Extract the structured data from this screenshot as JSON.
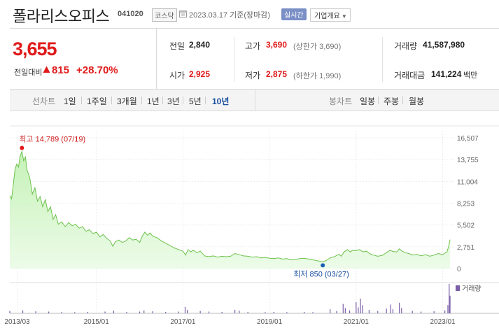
{
  "header": {
    "name": "폴라리스오피스",
    "code": "041020",
    "market": "코스닥",
    "date": "2023.03.17 기준(장마감)",
    "realtime_label": "실시간",
    "company_label": "기업개요"
  },
  "price": {
    "current": "3,655",
    "change_label": "전일대비",
    "change": "815",
    "change_pct": "+28.70%",
    "up_color": "#e01a1a"
  },
  "stats": {
    "prev_label": "전일",
    "prev": "2,840",
    "open_label": "시가",
    "open": "2,925",
    "high_label": "고가",
    "high": "3,690",
    "high_limit": "(상한가 3,690)",
    "low_label": "저가",
    "low": "2,875",
    "low_limit": "(하한가 1,990)",
    "volume_label": "거래량",
    "volume": "41,587,980",
    "amount_label": "거래대금",
    "amount": "141,224",
    "amount_unit": "백만"
  },
  "toolbar": {
    "line_label": "선차트",
    "periods": [
      "1일",
      "1주일",
      "3개월",
      "1년",
      "3년",
      "5년",
      "10년"
    ],
    "active_period": "10년",
    "candle_label": "봉차트",
    "candles": [
      "일봉",
      "주봉",
      "월봉"
    ]
  },
  "chart_data": {
    "type": "area",
    "title": "",
    "x_ticks": [
      "2013/03",
      "2015/01",
      "2017/01",
      "2019/01",
      "2021/01",
      "2023/01"
    ],
    "x_tick_times": [
      2013.17,
      2015.0,
      2017.0,
      2019.0,
      2021.0,
      2023.0
    ],
    "y_ticks": [
      "16,507",
      "13,755",
      "11,004",
      "8,253",
      "5,502",
      "2,751",
      "0"
    ],
    "ylim": [
      0,
      16507
    ],
    "xlim": [
      2013.0,
      2023.25
    ],
    "series": [
      {
        "points": [
          [
            2013.0,
            9200
          ],
          [
            2013.04,
            8800
          ],
          [
            2013.08,
            10500
          ],
          [
            2013.12,
            12500
          ],
          [
            2013.16,
            13200
          ],
          [
            2013.2,
            12800
          ],
          [
            2013.24,
            14200
          ],
          [
            2013.28,
            14789
          ],
          [
            2013.32,
            13600
          ],
          [
            2013.36,
            14100
          ],
          [
            2013.4,
            12400
          ],
          [
            2013.46,
            11500
          ],
          [
            2013.52,
            9400
          ],
          [
            2013.58,
            10200
          ],
          [
            2013.64,
            8500
          ],
          [
            2013.7,
            9100
          ],
          [
            2013.76,
            7800
          ],
          [
            2013.82,
            8700
          ],
          [
            2013.88,
            7200
          ],
          [
            2013.94,
            7800
          ],
          [
            2014.0,
            6200
          ],
          [
            2014.06,
            6800
          ],
          [
            2014.12,
            5600
          ],
          [
            2014.2,
            5900
          ],
          [
            2014.28,
            5300
          ],
          [
            2014.36,
            5800
          ],
          [
            2014.44,
            5400
          ],
          [
            2014.52,
            5600
          ],
          [
            2014.6,
            5100
          ],
          [
            2014.68,
            5300
          ],
          [
            2014.76,
            4700
          ],
          [
            2014.84,
            4900
          ],
          [
            2014.92,
            4400
          ],
          [
            2015.0,
            4600
          ],
          [
            2015.08,
            4000
          ],
          [
            2015.16,
            4300
          ],
          [
            2015.24,
            3800
          ],
          [
            2015.32,
            3500
          ],
          [
            2015.38,
            2800
          ],
          [
            2015.44,
            3400
          ],
          [
            2015.52,
            3600
          ],
          [
            2015.6,
            3300
          ],
          [
            2015.68,
            3500
          ],
          [
            2015.76,
            3900
          ],
          [
            2015.84,
            3600
          ],
          [
            2015.92,
            3700
          ],
          [
            2016.0,
            3300
          ],
          [
            2016.06,
            4100
          ],
          [
            2016.12,
            4600
          ],
          [
            2016.18,
            4200
          ],
          [
            2016.24,
            4500
          ],
          [
            2016.3,
            4100
          ],
          [
            2016.4,
            3900
          ],
          [
            2016.5,
            3500
          ],
          [
            2016.6,
            3200
          ],
          [
            2016.7,
            2900
          ],
          [
            2016.8,
            2600
          ],
          [
            2016.9,
            2400
          ],
          [
            2017.0,
            2200
          ],
          [
            2017.06,
            1700
          ],
          [
            2017.12,
            2400
          ],
          [
            2017.18,
            2100
          ],
          [
            2017.24,
            2300
          ],
          [
            2017.32,
            2000
          ],
          [
            2017.4,
            2200
          ],
          [
            2017.5,
            1600
          ],
          [
            2017.6,
            1500
          ],
          [
            2017.7,
            1600
          ],
          [
            2017.8,
            1450
          ],
          [
            2017.9,
            1550
          ],
          [
            2018.0,
            1500
          ],
          [
            2018.1,
            1550
          ],
          [
            2018.2,
            1900
          ],
          [
            2018.3,
            1750
          ],
          [
            2018.4,
            1600
          ],
          [
            2018.5,
            1550
          ],
          [
            2018.6,
            1450
          ],
          [
            2018.7,
            1500
          ],
          [
            2018.8,
            1350
          ],
          [
            2018.9,
            1400
          ],
          [
            2019.0,
            1300
          ],
          [
            2019.1,
            1250
          ],
          [
            2019.2,
            1350
          ],
          [
            2019.3,
            1200
          ],
          [
            2019.4,
            1250
          ],
          [
            2019.5,
            1100
          ],
          [
            2019.6,
            1150
          ],
          [
            2019.7,
            1250
          ],
          [
            2019.8,
            1300
          ],
          [
            2019.9,
            1200
          ],
          [
            2020.0,
            1100
          ],
          [
            2020.1,
            1000
          ],
          [
            2020.23,
            850
          ],
          [
            2020.32,
            1050
          ],
          [
            2020.4,
            1350
          ],
          [
            2020.5,
            1500
          ],
          [
            2020.6,
            1800
          ],
          [
            2020.66,
            1550
          ],
          [
            2020.72,
            2100
          ],
          [
            2020.8,
            2400
          ],
          [
            2020.86,
            2100
          ],
          [
            2020.92,
            2300
          ],
          [
            2021.0,
            2250
          ],
          [
            2021.08,
            2400
          ],
          [
            2021.16,
            2100
          ],
          [
            2021.24,
            2200
          ],
          [
            2021.32,
            1850
          ],
          [
            2021.4,
            1700
          ],
          [
            2021.5,
            1550
          ],
          [
            2021.6,
            1650
          ],
          [
            2021.7,
            2000
          ],
          [
            2021.78,
            2300
          ],
          [
            2021.86,
            2150
          ],
          [
            2021.94,
            2100
          ],
          [
            2022.0,
            2500
          ],
          [
            2022.06,
            2200
          ],
          [
            2022.14,
            2000
          ],
          [
            2022.22,
            1900
          ],
          [
            2022.3,
            1700
          ],
          [
            2022.4,
            1800
          ],
          [
            2022.5,
            1600
          ],
          [
            2022.6,
            1750
          ],
          [
            2022.7,
            1550
          ],
          [
            2022.8,
            1700
          ],
          [
            2022.9,
            1900
          ],
          [
            2023.0,
            1750
          ],
          [
            2023.05,
            1950
          ],
          [
            2023.1,
            2100
          ],
          [
            2023.14,
            2840
          ],
          [
            2023.17,
            3655
          ]
        ]
      }
    ],
    "annotations": {
      "high_label": "최고 14,789 (07/19)",
      "high_point": [
        2013.28,
        14789
      ],
      "low_label": "최저 850 (03/27)",
      "low_point": [
        2020.23,
        850
      ]
    },
    "volume_label": "거래량",
    "volume_bars": [
      [
        2013.0,
        8
      ],
      [
        2013.3,
        10
      ],
      [
        2013.6,
        7
      ],
      [
        2013.9,
        6
      ],
      [
        2014.2,
        5
      ],
      [
        2014.5,
        4
      ],
      [
        2014.8,
        5
      ],
      [
        2015.2,
        6
      ],
      [
        2015.4,
        9
      ],
      [
        2015.7,
        5
      ],
      [
        2016.0,
        6
      ],
      [
        2016.1,
        10
      ],
      [
        2016.3,
        7
      ],
      [
        2016.6,
        5
      ],
      [
        2016.9,
        6
      ],
      [
        2017.05,
        22
      ],
      [
        2017.1,
        12
      ],
      [
        2017.4,
        8
      ],
      [
        2017.6,
        6
      ],
      [
        2017.9,
        5
      ],
      [
        2018.2,
        12
      ],
      [
        2018.3,
        9
      ],
      [
        2018.5,
        5
      ],
      [
        2018.9,
        4
      ],
      [
        2019.1,
        5
      ],
      [
        2019.4,
        4
      ],
      [
        2019.8,
        5
      ],
      [
        2020.0,
        4
      ],
      [
        2020.4,
        14
      ],
      [
        2020.55,
        8
      ],
      [
        2020.7,
        32
      ],
      [
        2020.75,
        18
      ],
      [
        2020.85,
        10
      ],
      [
        2021.0,
        38
      ],
      [
        2021.05,
        20
      ],
      [
        2021.1,
        50
      ],
      [
        2021.15,
        28
      ],
      [
        2021.3,
        12
      ],
      [
        2021.5,
        8
      ],
      [
        2021.7,
        16
      ],
      [
        2021.8,
        30
      ],
      [
        2021.85,
        14
      ],
      [
        2022.0,
        36
      ],
      [
        2022.05,
        18
      ],
      [
        2022.3,
        8
      ],
      [
        2022.5,
        6
      ],
      [
        2022.8,
        7
      ],
      [
        2023.05,
        10
      ],
      [
        2023.12,
        28
      ],
      [
        2023.15,
        100
      ],
      [
        2023.17,
        60
      ]
    ]
  }
}
